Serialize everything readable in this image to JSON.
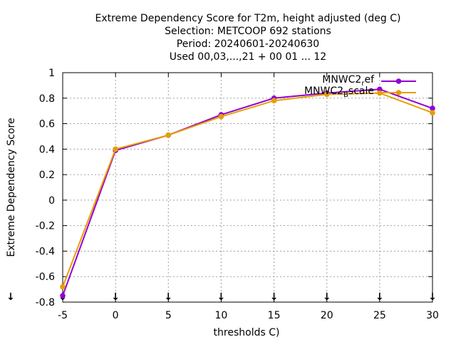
{
  "chart_data": {
    "type": "line",
    "title_lines": [
      "Extreme Dependency Score  for T2m, height adjusted (deg C)",
      "Selection: METCOOP    692 stations",
      "Period: 20240601-20240630",
      "Used 00,03,...,21 + 00 01 ... 12"
    ],
    "xlabel": "thresholds C)",
    "ylabel": "Extreme Dependency Score",
    "xlim": [
      -5,
      30
    ],
    "ylim": [
      -0.8,
      1
    ],
    "xticks": [
      -5,
      0,
      5,
      10,
      15,
      20,
      25,
      30
    ],
    "yticks": [
      -0.8,
      -0.6,
      -0.4,
      -0.2,
      0,
      0.2,
      0.4,
      0.6,
      0.8,
      1
    ],
    "xtick_labels": [
      "-5",
      "0",
      "5",
      "10",
      "15",
      "20",
      "25",
      "30"
    ],
    "ytick_labels": [
      "-0.8",
      "-0.6",
      "-0.4",
      "-0.2",
      "0",
      "0.2",
      "0.4",
      "0.6",
      "0.8",
      "1"
    ],
    "grid": true,
    "legend_position": "top-right",
    "x": [
      -5,
      0,
      5,
      10,
      15,
      20,
      25,
      30
    ],
    "series": [
      {
        "name": "MNWC2_ref",
        "legend_base": "MNWC2",
        "legend_sub": "r",
        "legend_rest": "ef",
        "color": "#9400d3",
        "values": [
          -0.75,
          0.39,
          0.51,
          0.67,
          0.8,
          0.84,
          0.87,
          0.72
        ]
      },
      {
        "name": "MNWC2_Bscale",
        "legend_base": "MNWC2",
        "legend_sub": "B",
        "legend_rest": "scale",
        "color": "#e69f00",
        "values": [
          -0.68,
          0.4,
          0.51,
          0.655,
          0.78,
          0.83,
          0.84,
          0.685
        ]
      }
    ],
    "arrow_marker": "↓"
  }
}
